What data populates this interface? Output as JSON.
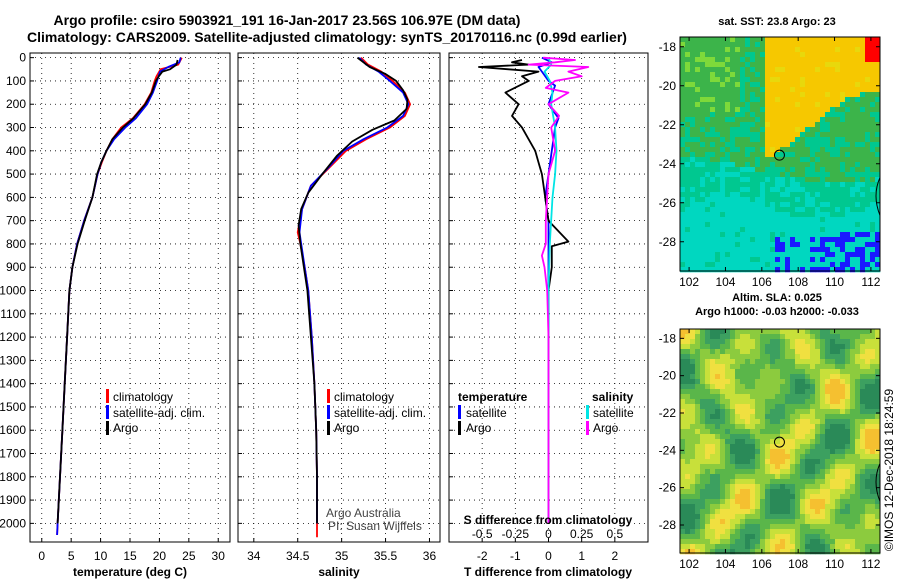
{
  "title": {
    "line1": "Argo profile: csiro 5903921_191 16-Jan-2017 23.56S 106.97E (DM data)",
    "line2": "Climatology: CARS2009. Satellite-adjusted climatology: synTS_20170116.nc (0.99d earlier)"
  },
  "colors": {
    "climatology": "#ff0000",
    "satellite": "#0000ff",
    "argo": "#000000",
    "sat_salinity": "#00e5e5",
    "argo_salinity": "#ff00ff"
  },
  "depth_ticks": [
    "0",
    "100",
    "200",
    "300",
    "400",
    "500",
    "600",
    "700",
    "800",
    "900",
    "1000",
    "1100",
    "1200",
    "1300",
    "1400",
    "1500",
    "1600",
    "1700",
    "1800",
    "1900",
    "2000"
  ],
  "panels": {
    "temperature": {
      "xlabel": "temperature (deg C)",
      "xticks": [
        "0",
        "5",
        "10",
        "15",
        "20",
        "25",
        "30"
      ],
      "legend": [
        "climatology",
        "satellite-adj. clim.",
        "Argo"
      ]
    },
    "salinity": {
      "xlabel": "salinity",
      "xticks": [
        "34",
        "34.5",
        "35",
        "35.5",
        "36"
      ],
      "legend": [
        "climatology",
        "satellite-adj. clim.",
        "Argo"
      ],
      "credit1": "Argo Australia",
      "credit2": "PI: Susan Wijffels"
    },
    "difference": {
      "xlabel": "T difference from climatology",
      "xticks": [
        "-2",
        "-1",
        "0",
        "1",
        "2"
      ],
      "s_label": "S difference from climatology",
      "s_ticks": [
        "-0.5",
        "-0.25",
        "0",
        "0.25",
        "0.5"
      ],
      "legend_t_title": "temperature",
      "legend_s_title": "salinity",
      "legend_t": [
        "satellite",
        "Argo"
      ],
      "legend_s": [
        "satellite",
        "Argo"
      ]
    }
  },
  "maps": {
    "sst_title": "sat. SST: 23.8 Argo: 23",
    "sla_title1": "Altim. SLA: 0.025",
    "sla_title2": "Argo h1000: -0.03 h2000: -0.033",
    "lon_ticks": [
      "102",
      "104",
      "106",
      "108",
      "110",
      "112"
    ],
    "lat_ticks": [
      "-18",
      "-20",
      "-22",
      "-24",
      "-26",
      "-28"
    ]
  },
  "footer": "©IMOS 12-Dec-2018 18:24:59",
  "chart_data": [
    {
      "type": "line",
      "name": "temperature",
      "xlabel": "temperature (deg C)",
      "ylabel": "",
      "xlim": [
        -2,
        32
      ],
      "ylim": [
        2080,
        -20
      ],
      "grid": true,
      "legend": "bottom-left",
      "series": [
        {
          "name": "climatology",
          "color": "#ff0000",
          "points": [
            [
              23.8,
              0
            ],
            [
              23.2,
              30
            ],
            [
              20.2,
              50
            ],
            [
              19.5,
              80
            ],
            [
              19.2,
              100
            ],
            [
              18.6,
              150
            ],
            [
              17.5,
              200
            ],
            [
              15.5,
              260
            ],
            [
              13.5,
              300
            ],
            [
              12,
              350
            ],
            [
              11,
              400
            ],
            [
              10.2,
              450
            ],
            [
              9.5,
              500
            ],
            [
              8.6,
              600
            ],
            [
              7.2,
              700
            ],
            [
              6,
              800
            ],
            [
              5.2,
              900
            ],
            [
              4.7,
              1000
            ],
            [
              4.3,
              1200
            ],
            [
              3.9,
              1400
            ],
            [
              3.5,
              1600
            ],
            [
              3.1,
              1800
            ],
            [
              2.7,
              2000
            ],
            [
              2.6,
              2050
            ]
          ]
        },
        {
          "name": "satellite-adj. clim.",
          "color": "#0000ff",
          "points": [
            [
              23.6,
              0
            ],
            [
              23.4,
              20
            ],
            [
              21.5,
              40
            ],
            [
              20.1,
              60
            ],
            [
              19.6,
              100
            ],
            [
              18.9,
              150
            ],
            [
              17.9,
              200
            ],
            [
              16,
              260
            ],
            [
              14.2,
              300
            ],
            [
              12.3,
              350
            ],
            [
              11,
              400
            ],
            [
              10.1,
              450
            ],
            [
              9.5,
              500
            ],
            [
              8.6,
              600
            ],
            [
              7.2,
              700
            ],
            [
              6,
              800
            ],
            [
              5.2,
              900
            ],
            [
              4.7,
              1000
            ],
            [
              4.3,
              1200
            ],
            [
              3.9,
              1400
            ],
            [
              3.5,
              1600
            ],
            [
              3.1,
              1800
            ],
            [
              2.7,
              2000
            ],
            [
              2.6,
              2050
            ]
          ]
        },
        {
          "name": "Argo",
          "color": "#000000",
          "points": [
            [
              23.1,
              10
            ],
            [
              22.9,
              30
            ],
            [
              21.8,
              50
            ],
            [
              20.5,
              60
            ],
            [
              19.9,
              80
            ],
            [
              19.4,
              100
            ],
            [
              18.7,
              150
            ],
            [
              17.6,
              200
            ],
            [
              15.6,
              260
            ],
            [
              13.8,
              300
            ],
            [
              12,
              350
            ],
            [
              11,
              400
            ],
            [
              10.1,
              450
            ],
            [
              9.4,
              500
            ],
            [
              8.6,
              600
            ],
            [
              7.3,
              700
            ],
            [
              6.1,
              800
            ],
            [
              5.2,
              900
            ],
            [
              4.7,
              1000
            ],
            [
              4.3,
              1200
            ],
            [
              3.9,
              1400
            ],
            [
              3.5,
              1600
            ],
            [
              3.1,
              1800
            ],
            [
              2.7,
              2000
            ]
          ]
        }
      ]
    },
    {
      "type": "line",
      "name": "salinity",
      "xlabel": "salinity",
      "ylabel": "",
      "xlim": [
        33.82,
        36.12
      ],
      "ylim": [
        2080,
        -20
      ],
      "grid": true,
      "legend": "bottom-left",
      "series": [
        {
          "name": "climatology",
          "color": "#ff0000",
          "points": [
            [
              35.22,
              0
            ],
            [
              35.3,
              30
            ],
            [
              35.45,
              60
            ],
            [
              35.58,
              100
            ],
            [
              35.72,
              150
            ],
            [
              35.78,
              200
            ],
            [
              35.72,
              250
            ],
            [
              35.55,
              300
            ],
            [
              35.28,
              350
            ],
            [
              35.05,
              400
            ],
            [
              34.84,
              480
            ],
            [
              34.65,
              550
            ],
            [
              34.55,
              650
            ],
            [
              34.5,
              750
            ],
            [
              34.53,
              800
            ],
            [
              34.58,
              900
            ],
            [
              34.62,
              1000
            ],
            [
              34.66,
              1200
            ],
            [
              34.69,
              1400
            ],
            [
              34.71,
              1600
            ],
            [
              34.72,
              1800
            ],
            [
              34.72,
              2000
            ],
            [
              34.72,
              2060
            ]
          ]
        },
        {
          "name": "satellite-adj. clim.",
          "color": "#0000ff",
          "points": [
            [
              35.2,
              0
            ],
            [
              35.28,
              30
            ],
            [
              35.42,
              60
            ],
            [
              35.55,
              100
            ],
            [
              35.7,
              150
            ],
            [
              35.76,
              200
            ],
            [
              35.7,
              250
            ],
            [
              35.52,
              300
            ],
            [
              35.25,
              350
            ],
            [
              35.02,
              400
            ],
            [
              34.83,
              480
            ],
            [
              34.65,
              550
            ],
            [
              34.55,
              650
            ],
            [
              34.52,
              750
            ],
            [
              34.54,
              800
            ],
            [
              34.58,
              900
            ],
            [
              34.62,
              1000
            ],
            [
              34.66,
              1200
            ],
            [
              34.69,
              1400
            ],
            [
              34.71,
              1600
            ],
            [
              34.72,
              1800
            ],
            [
              34.72,
              2000
            ]
          ]
        },
        {
          "name": "Argo",
          "color": "#000000",
          "points": [
            [
              35.18,
              0
            ],
            [
              35.32,
              40
            ],
            [
              35.5,
              70
            ],
            [
              35.62,
              100
            ],
            [
              35.7,
              140
            ],
            [
              35.75,
              180
            ],
            [
              35.74,
              220
            ],
            [
              35.6,
              270
            ],
            [
              35.35,
              310
            ],
            [
              35.12,
              360
            ],
            [
              34.95,
              420
            ],
            [
              34.78,
              500
            ],
            [
              34.62,
              580
            ],
            [
              34.54,
              650
            ],
            [
              34.51,
              720
            ],
            [
              34.53,
              800
            ],
            [
              34.57,
              900
            ],
            [
              34.61,
              1000
            ],
            [
              34.65,
              1200
            ],
            [
              34.69,
              1400
            ],
            [
              34.71,
              1600
            ],
            [
              34.72,
              1800
            ],
            [
              34.72,
              2000
            ]
          ]
        }
      ]
    },
    {
      "type": "line",
      "name": "difference",
      "xlabel": "T difference from climatology",
      "ylabel": "",
      "xlim": [
        -3,
        3
      ],
      "ylim": [
        2080,
        -20
      ],
      "s_xlim": [
        -0.75,
        0.75
      ],
      "grid": true,
      "legend": "bottom-left",
      "series": [
        {
          "name": "temperature satellite",
          "color": "#0000ff",
          "axis": "T",
          "points": [
            [
              -0.2,
              0
            ],
            [
              0.1,
              20
            ],
            [
              -0.3,
              40
            ],
            [
              -0.2,
              60
            ],
            [
              0,
              100
            ],
            [
              0.2,
              120
            ],
            [
              0,
              200
            ],
            [
              0.3,
              260
            ],
            [
              0.2,
              300
            ],
            [
              0.1,
              400
            ],
            [
              0,
              500
            ],
            [
              -0.1,
              600
            ],
            [
              0,
              700
            ],
            [
              0,
              800
            ],
            [
              0,
              1000
            ],
            [
              0,
              1500
            ],
            [
              0,
              2000
            ]
          ]
        },
        {
          "name": "temperature Argo",
          "color": "#000000",
          "axis": "T",
          "points": [
            [
              -0.8,
              10
            ],
            [
              -1.1,
              20
            ],
            [
              -0.6,
              30
            ],
            [
              -2.1,
              40
            ],
            [
              -1.2,
              50
            ],
            [
              -0.3,
              60
            ],
            [
              -0.8,
              80
            ],
            [
              -0.6,
              100
            ],
            [
              -1.3,
              150
            ],
            [
              -0.9,
              200
            ],
            [
              -1.1,
              250
            ],
            [
              -0.8,
              300
            ],
            [
              -0.6,
              350
            ],
            [
              -0.4,
              400
            ],
            [
              -0.3,
              450
            ],
            [
              -0.2,
              500
            ],
            [
              -0.1,
              600
            ],
            [
              0,
              700
            ],
            [
              0.6,
              790
            ],
            [
              0.1,
              810
            ],
            [
              0.1,
              900
            ],
            [
              0,
              1000
            ],
            [
              0,
              1500
            ],
            [
              0,
              2000
            ]
          ]
        },
        {
          "name": "salinity satellite",
          "color": "#00e5e5",
          "axis": "S",
          "points": [
            [
              0,
              0
            ],
            [
              0.02,
              30
            ],
            [
              -0.03,
              60
            ],
            [
              0.01,
              100
            ],
            [
              0.03,
              150
            ],
            [
              0.02,
              200
            ],
            [
              0.05,
              300
            ],
            [
              0.06,
              400
            ],
            [
              0.05,
              500
            ],
            [
              0.03,
              600
            ],
            [
              0.01,
              800
            ],
            [
              0,
              1000
            ],
            [
              0,
              1500
            ],
            [
              0,
              2000
            ]
          ]
        },
        {
          "name": "salinity Argo",
          "color": "#ff00ff",
          "axis": "S",
          "points": [
            [
              -0.04,
              0
            ],
            [
              0.2,
              10
            ],
            [
              0.05,
              20
            ],
            [
              -0.15,
              30
            ],
            [
              0.3,
              40
            ],
            [
              0.15,
              60
            ],
            [
              0.25,
              80
            ],
            [
              0.05,
              100
            ],
            [
              -0.02,
              130
            ],
            [
              0.15,
              150
            ],
            [
              0,
              200
            ],
            [
              0.08,
              250
            ],
            [
              0.02,
              300
            ],
            [
              0.05,
              400
            ],
            [
              0,
              500
            ],
            [
              -0.02,
              700
            ],
            [
              -0.02,
              800
            ],
            [
              -0.05,
              850
            ],
            [
              -0.03,
              900
            ],
            [
              -0.01,
              1000
            ],
            [
              0,
              1200
            ],
            [
              0,
              1500
            ],
            [
              0,
              2000
            ]
          ]
        }
      ]
    },
    {
      "type": "heatmap",
      "name": "sat. SST",
      "xlim": [
        101.5,
        112.5
      ],
      "ylim": [
        -29.5,
        -17.5
      ],
      "argo_position": [
        106.97,
        -23.56
      ],
      "palette": [
        "#00d7c0",
        "#00c890",
        "#3cb44a",
        "#7ed93a",
        "#e8d80c",
        "#f6c800",
        "#ff0000",
        "#1a1aff"
      ]
    },
    {
      "type": "heatmap",
      "name": "Altim. SLA",
      "xlim": [
        101.5,
        112.5
      ],
      "ylim": [
        -29.5,
        -17.5
      ],
      "argo_position": [
        106.97,
        -23.56
      ],
      "palette": [
        "#2a8a58",
        "#3ca060",
        "#5ab64a",
        "#8ccb3e",
        "#c8e03a",
        "#f0e040",
        "#f5c030"
      ]
    }
  ]
}
